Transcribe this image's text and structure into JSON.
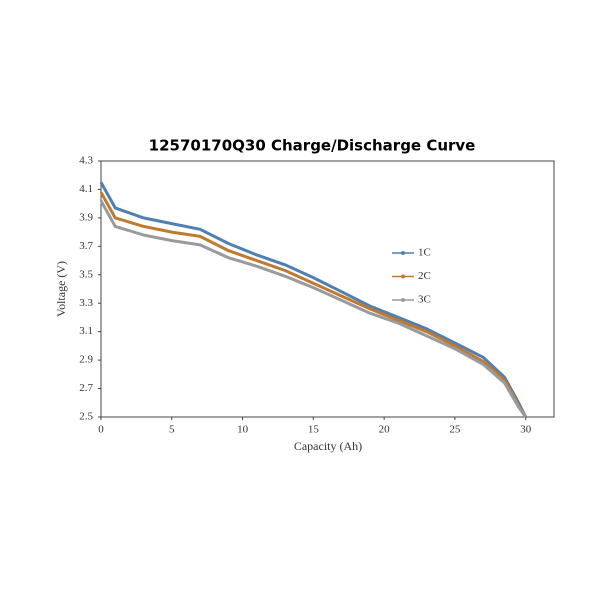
{
  "chart_data": {
    "type": "line",
    "title": "12570170Q30 Charge/Discharge Curve",
    "x_label": "Capacity (Ah)",
    "y_label": "Voltage (V)",
    "x": [
      0,
      1,
      3,
      5,
      7,
      9,
      11,
      13,
      15,
      17,
      19,
      21,
      23,
      25,
      27,
      28.5,
      29.5,
      30
    ],
    "series": [
      {
        "name": "1C",
        "color": "#4f7fb5",
        "values": [
          4.15,
          3.97,
          3.9,
          3.86,
          3.82,
          3.72,
          3.64,
          3.57,
          3.48,
          3.38,
          3.28,
          3.2,
          3.12,
          3.02,
          2.92,
          2.78,
          2.6,
          2.5
        ]
      },
      {
        "name": "2C",
        "color": "#c07a2e",
        "values": [
          4.08,
          3.9,
          3.84,
          3.8,
          3.77,
          3.67,
          3.6,
          3.53,
          3.44,
          3.35,
          3.26,
          3.18,
          3.1,
          3.0,
          2.89,
          2.76,
          2.58,
          2.5
        ]
      },
      {
        "name": "3C",
        "color": "#9a9a9a",
        "values": [
          4.02,
          3.84,
          3.78,
          3.74,
          3.71,
          3.62,
          3.56,
          3.49,
          3.41,
          3.32,
          3.23,
          3.16,
          3.07,
          2.98,
          2.87,
          2.74,
          2.57,
          2.5
        ]
      }
    ],
    "xlim": [
      0,
      32
    ],
    "xticks": [
      0,
      5,
      10,
      15,
      20,
      25,
      30
    ],
    "ylim": [
      2.5,
      4.3
    ],
    "yticks": [
      2.5,
      2.7,
      2.9,
      3.1,
      3.3,
      3.5,
      3.7,
      3.9,
      4.1,
      4.3
    ],
    "legend": "right"
  }
}
